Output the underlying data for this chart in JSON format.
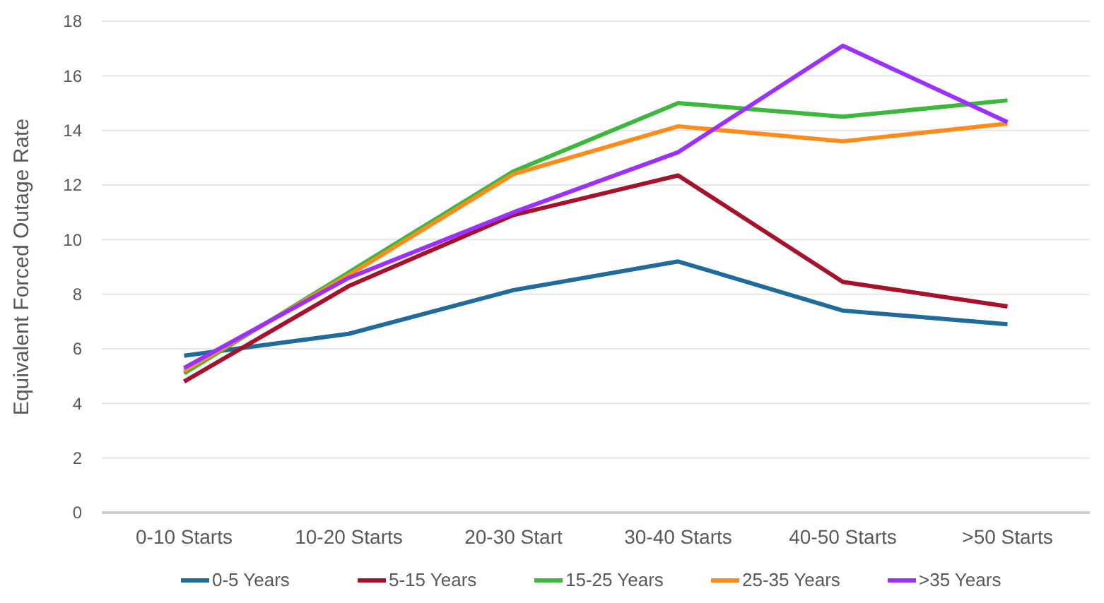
{
  "chart_data": {
    "type": "line",
    "ylabel": "Equivalent Forced Outage Rate",
    "categories": [
      "0-10 Starts",
      "10-20 Starts",
      "20-30 Start",
      "30-40 Starts",
      "40-50 Starts",
      ">50 Starts"
    ],
    "series": [
      {
        "name": "0-5 Years",
        "color": "#1f6b9c",
        "values": [
          5.75,
          6.55,
          8.15,
          9.2,
          7.4,
          6.9
        ]
      },
      {
        "name": "5-15 Years",
        "color": "#a5122a",
        "values": [
          4.8,
          8.3,
          10.9,
          12.35,
          8.45,
          7.55
        ]
      },
      {
        "name": "15-25 Years",
        "color": "#3cb83c",
        "values": [
          5.1,
          8.8,
          12.5,
          15.0,
          14.5,
          15.1
        ]
      },
      {
        "name": "25-35 Years",
        "color": "#ff8c1a",
        "values": [
          5.2,
          8.7,
          12.4,
          14.15,
          13.6,
          14.25
        ]
      },
      {
        "name": ">35 Years",
        "color": "#9b30ff",
        "values": [
          5.3,
          8.6,
          11.0,
          13.2,
          17.1,
          14.3
        ]
      }
    ],
    "ylim": [
      0,
      18
    ],
    "yticks": [
      0,
      2,
      4,
      6,
      8,
      10,
      12,
      14,
      16,
      18
    ],
    "grid": "y",
    "legend": "bottom",
    "marker": "none",
    "line_style": "solid"
  }
}
